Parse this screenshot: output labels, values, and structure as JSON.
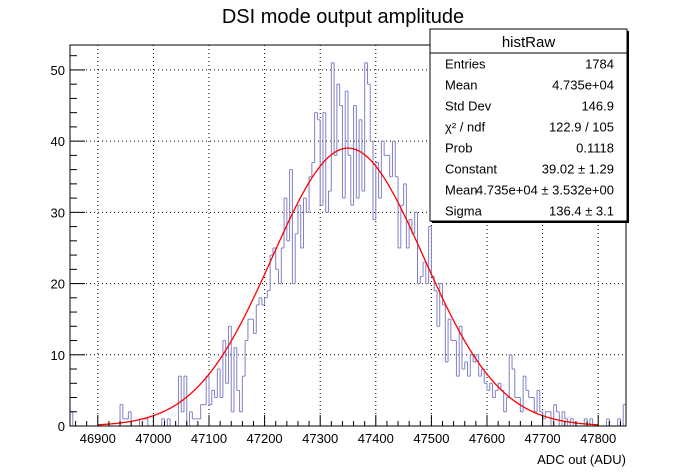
{
  "chart_data": {
    "type": "histogram",
    "title": "DSI mode output amplitude",
    "xlabel": "ADC out (ADU)",
    "ylabel": "",
    "xlim": [
      46850,
      47850
    ],
    "ylim": [
      0,
      53.5
    ],
    "x_ticks": [
      46900,
      47000,
      47100,
      47200,
      47300,
      47400,
      47500,
      47600,
      47700,
      47800
    ],
    "y_ticks": [
      0,
      10,
      20,
      30,
      40,
      50
    ],
    "grid": true,
    "colors": {
      "histogram": "#8080c8",
      "fit": "#ff0000",
      "grid": "#000000"
    },
    "bin_width": 5,
    "bin_start": 46850,
    "histogram_counts": [
      2,
      0,
      0,
      0,
      0,
      0,
      0,
      0,
      0,
      0,
      0,
      0,
      0,
      0,
      0,
      0,
      0,
      0,
      3,
      1,
      1,
      2,
      0,
      0,
      0,
      1,
      1,
      1,
      0,
      0,
      0,
      0,
      0,
      1,
      0,
      1,
      0,
      0,
      0,
      7,
      2,
      7,
      0,
      2,
      1,
      1,
      1,
      3,
      3,
      7,
      3,
      5,
      4,
      8,
      4,
      12,
      6,
      14,
      2,
      11,
      5,
      2,
      7,
      12,
      15,
      15,
      13,
      17,
      18,
      17,
      18,
      19,
      24,
      25,
      22,
      20,
      25,
      32,
      26,
      36,
      20,
      27,
      31,
      25,
      32,
      30,
      35,
      37,
      44,
      43,
      31,
      44,
      30,
      33,
      51,
      38,
      48,
      45,
      32,
      47,
      38,
      31,
      45,
      32,
      43,
      33,
      51,
      48,
      40,
      29,
      37,
      32,
      40,
      38,
      38,
      35,
      40,
      35,
      25,
      31,
      34,
      25,
      29,
      27,
      30,
      20,
      21,
      23,
      20,
      28,
      21,
      19,
      14,
      20,
      17,
      9,
      15,
      12,
      12,
      7,
      14,
      8,
      9,
      7,
      10,
      9,
      10,
      7,
      8,
      6,
      5,
      6,
      4,
      5,
      6,
      5,
      2,
      4,
      10,
      8,
      4,
      4,
      2,
      7,
      5,
      4,
      4,
      2,
      5,
      2,
      1,
      2,
      2,
      0,
      3,
      2,
      0,
      2,
      1,
      0,
      1,
      0,
      0,
      0,
      0,
      1,
      0,
      1,
      0,
      0,
      0,
      0,
      0,
      1,
      0,
      0,
      0,
      1,
      0,
      3
    ],
    "fit": {
      "type": "gaussian",
      "constant": 39.02,
      "mean": 47350,
      "sigma": 136.4
    },
    "stats_box": {
      "title": "histRaw",
      "rows": [
        {
          "label": "Entries",
          "value": "1784"
        },
        {
          "label": "Mean",
          "value": "4.735e+04"
        },
        {
          "label": "Std Dev",
          "value": "146.9"
        },
        {
          "label": "χ² / ndf",
          "value": "122.9 / 105"
        },
        {
          "label": "Prob",
          "value": "0.1118"
        },
        {
          "label": "Constant",
          "value": "39.02 ± 1.29"
        },
        {
          "label": "Mean",
          "value": "4.735e+04 ± 3.532e+00"
        },
        {
          "label": "Sigma",
          "value": "136.4 ± 3.1"
        }
      ]
    }
  }
}
